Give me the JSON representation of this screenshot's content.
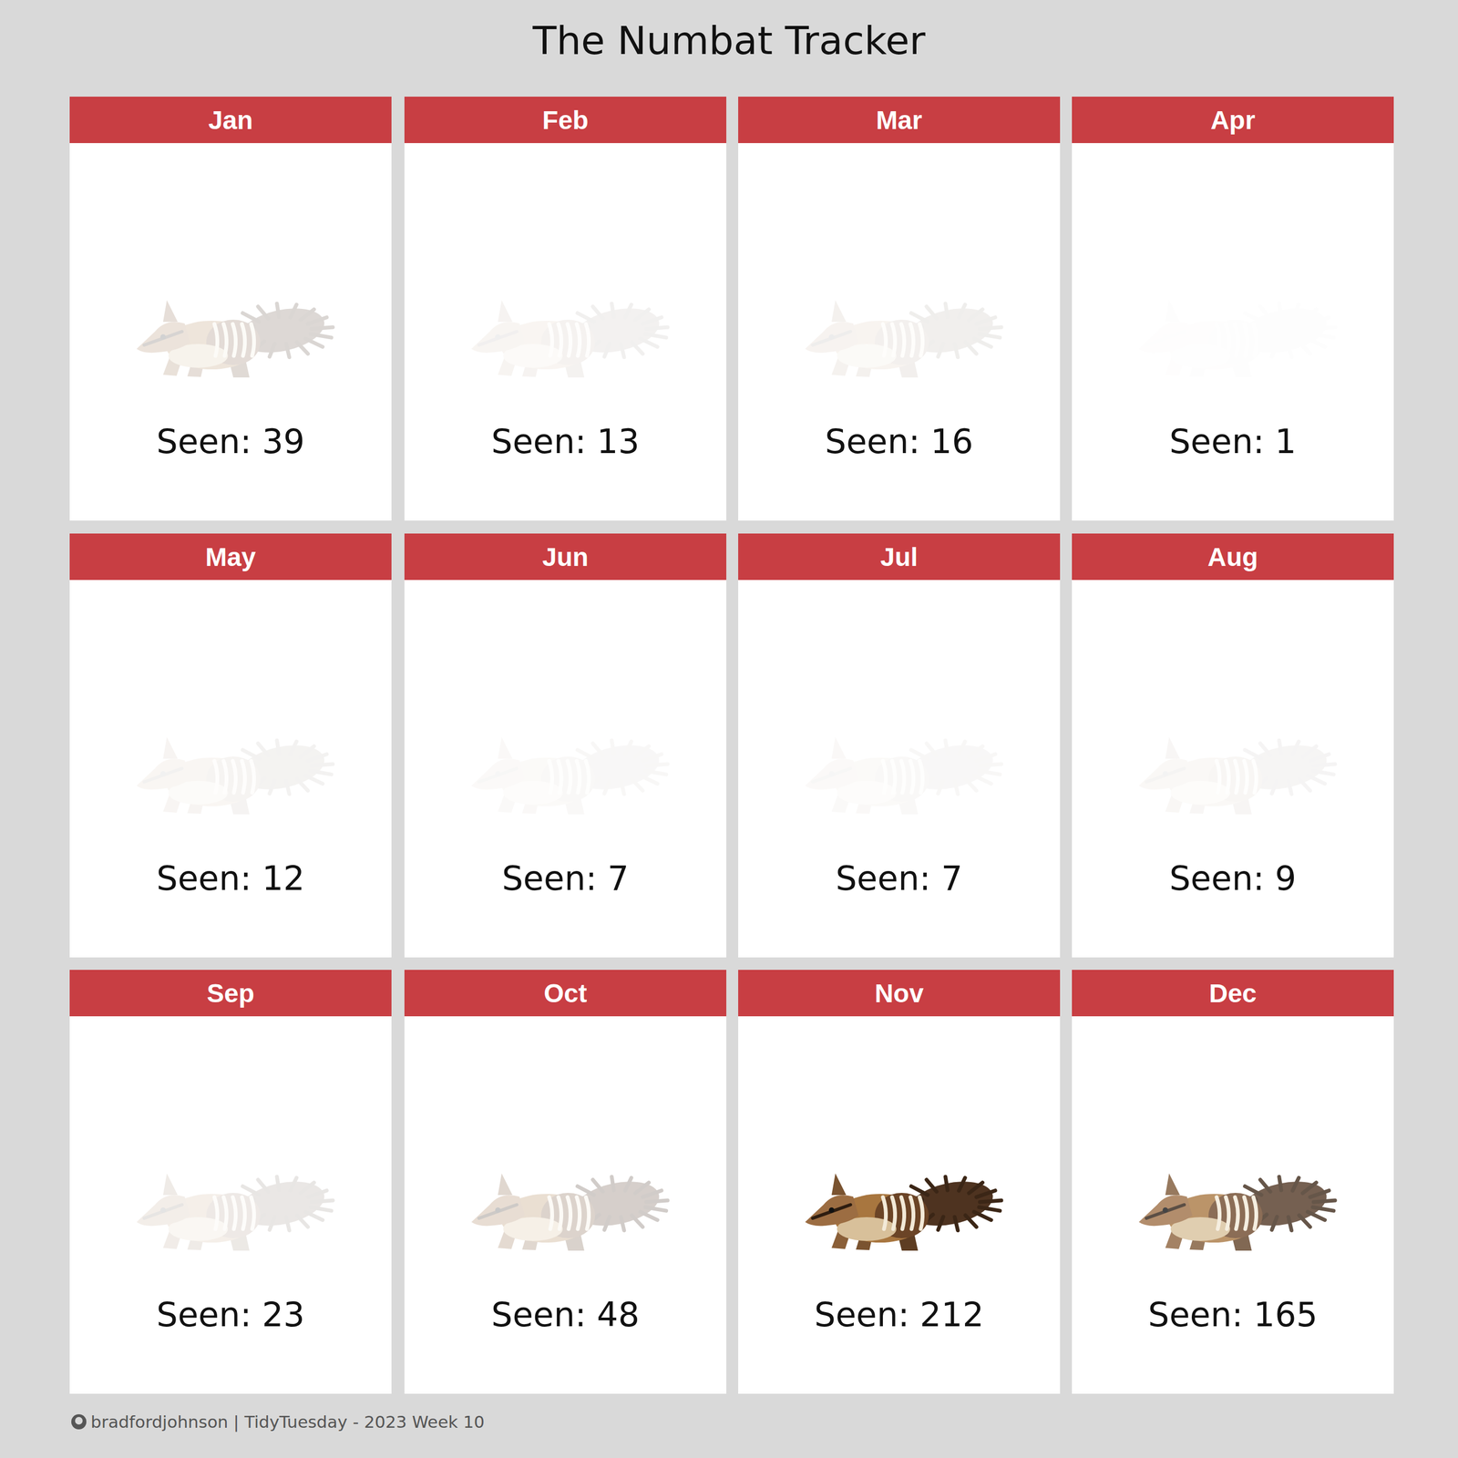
{
  "chart_data": {
    "type": "pictogram",
    "title": "The Numbat Tracker",
    "categories": [
      "Jan",
      "Feb",
      "Mar",
      "Apr",
      "May",
      "Jun",
      "Jul",
      "Aug",
      "Sep",
      "Oct",
      "Nov",
      "Dec"
    ],
    "values": [
      39,
      13,
      16,
      1,
      12,
      7,
      7,
      9,
      23,
      48,
      212,
      165
    ],
    "value_labels": [
      "Seen: 39",
      "Seen: 13",
      "Seen: 16",
      "Seen: 1",
      "Seen: 12",
      "Seen: 7",
      "Seen: 7",
      "Seen: 9",
      "Seen: 23",
      "Seen: 48",
      "Seen: 212",
      "Seen: 165"
    ],
    "data_labels": true,
    "caption": "bradfordjohnson | TidyTuesday - 2023 Week 10"
  }
}
